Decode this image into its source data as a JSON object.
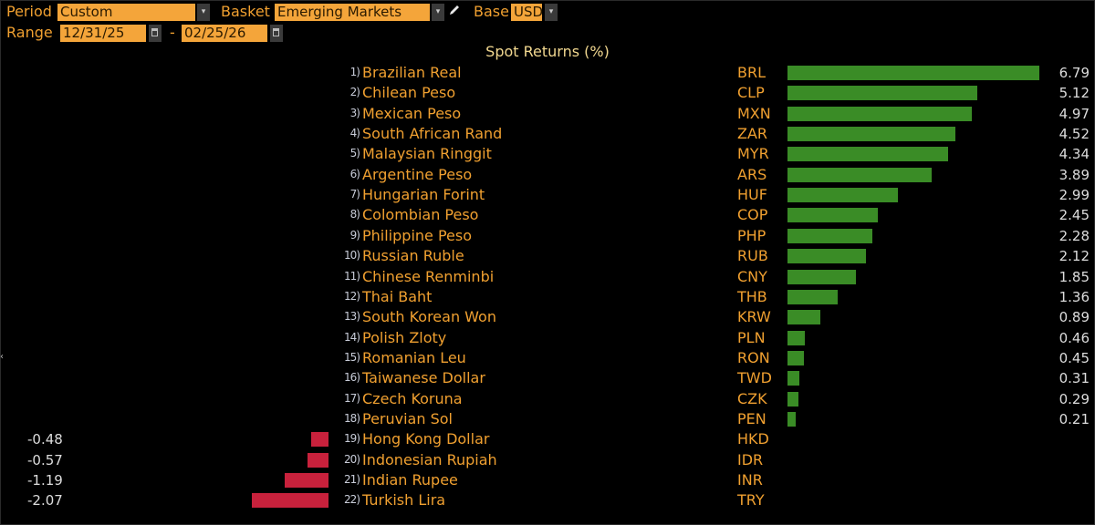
{
  "header": {
    "period_label": "Period",
    "period_value": "Custom",
    "basket_label": "Basket",
    "basket_value": "Emerging Markets",
    "base_label": "Base",
    "base_value": "USD",
    "range_label": "Range",
    "range_start": "12/31/25",
    "range_sep": "-",
    "range_end": "02/25/26",
    "dropdown_glyph": "▾"
  },
  "colors": {
    "positive": "#3a8c26",
    "negative": "#c8213c",
    "label": "#f0a030",
    "field_bg": "#f4a53a"
  },
  "chart_data": {
    "type": "bar",
    "title": "Spot Returns (%)",
    "orientation": "horizontal",
    "xlabel": "",
    "ylabel": "",
    "grid": false,
    "legend": null,
    "categories": [
      "Brazilian Real",
      "Chilean Peso",
      "Mexican Peso",
      "South African Rand",
      "Malaysian Ringgit",
      "Argentine Peso",
      "Hungarian Forint",
      "Colombian Peso",
      "Philippine Peso",
      "Russian Ruble",
      "Chinese Renminbi",
      "Thai Baht",
      "South Korean Won",
      "Polish Zloty",
      "Romanian Leu",
      "Taiwanese Dollar",
      "Czech Koruna",
      "Peruvian Sol",
      "Hong Kong Dollar",
      "Indonesian Rupiah",
      "Indian Rupee",
      "Turkish Lira"
    ],
    "codes": [
      "BRL",
      "CLP",
      "MXN",
      "ZAR",
      "MYR",
      "ARS",
      "HUF",
      "COP",
      "PHP",
      "RUB",
      "CNY",
      "THB",
      "KRW",
      "PLN",
      "RON",
      "TWD",
      "CZK",
      "PEN",
      "HKD",
      "IDR",
      "INR",
      "TRY"
    ],
    "values": [
      6.79,
      5.12,
      4.97,
      4.52,
      4.34,
      3.89,
      2.99,
      2.45,
      2.28,
      2.12,
      1.85,
      1.36,
      0.89,
      0.46,
      0.45,
      0.31,
      0.29,
      0.21,
      -0.48,
      -0.57,
      -1.19,
      -2.07
    ]
  },
  "rows": [
    {
      "rank": "1)",
      "name": "Brazilian Real",
      "code": "BRL",
      "value": "6.79",
      "v": 6.79
    },
    {
      "rank": "2)",
      "name": "Chilean Peso",
      "code": "CLP",
      "value": "5.12",
      "v": 5.12
    },
    {
      "rank": "3)",
      "name": "Mexican Peso",
      "code": "MXN",
      "value": "4.97",
      "v": 4.97
    },
    {
      "rank": "4)",
      "name": "South African Rand",
      "code": "ZAR",
      "value": "4.52",
      "v": 4.52
    },
    {
      "rank": "5)",
      "name": "Malaysian Ringgit",
      "code": "MYR",
      "value": "4.34",
      "v": 4.34
    },
    {
      "rank": "6)",
      "name": "Argentine Peso",
      "code": "ARS",
      "value": "3.89",
      "v": 3.89
    },
    {
      "rank": "7)",
      "name": "Hungarian Forint",
      "code": "HUF",
      "value": "2.99",
      "v": 2.99
    },
    {
      "rank": "8)",
      "name": "Colombian Peso",
      "code": "COP",
      "value": "2.45",
      "v": 2.45
    },
    {
      "rank": "9)",
      "name": "Philippine Peso",
      "code": "PHP",
      "value": "2.28",
      "v": 2.28
    },
    {
      "rank": "10)",
      "name": "Russian Ruble",
      "code": "RUB",
      "value": "2.12",
      "v": 2.12
    },
    {
      "rank": "11)",
      "name": "Chinese Renminbi",
      "code": "CNY",
      "value": "1.85",
      "v": 1.85
    },
    {
      "rank": "12)",
      "name": "Thai Baht",
      "code": "THB",
      "value": "1.36",
      "v": 1.36
    },
    {
      "rank": "13)",
      "name": "South Korean Won",
      "code": "KRW",
      "value": "0.89",
      "v": 0.89
    },
    {
      "rank": "14)",
      "name": "Polish Zloty",
      "code": "PLN",
      "value": "0.46",
      "v": 0.46
    },
    {
      "rank": "15)",
      "name": "Romanian Leu",
      "code": "RON",
      "value": "0.45",
      "v": 0.45
    },
    {
      "rank": "16)",
      "name": "Taiwanese Dollar",
      "code": "TWD",
      "value": "0.31",
      "v": 0.31
    },
    {
      "rank": "17)",
      "name": "Czech Koruna",
      "code": "CZK",
      "value": "0.29",
      "v": 0.29
    },
    {
      "rank": "18)",
      "name": "Peruvian Sol",
      "code": "PEN",
      "value": "0.21",
      "v": 0.21
    },
    {
      "rank": "19)",
      "name": "Hong Kong Dollar",
      "code": "HKD",
      "value": "-0.48",
      "v": -0.48
    },
    {
      "rank": "20)",
      "name": "Indonesian Rupiah",
      "code": "IDR",
      "value": "-0.57",
      "v": -0.57
    },
    {
      "rank": "21)",
      "name": "Indian Rupee",
      "code": "INR",
      "value": "-1.19",
      "v": -1.19
    },
    {
      "rank": "22)",
      "name": "Turkish Lira",
      "code": "TRY",
      "value": "-2.07",
      "v": -2.07
    }
  ]
}
